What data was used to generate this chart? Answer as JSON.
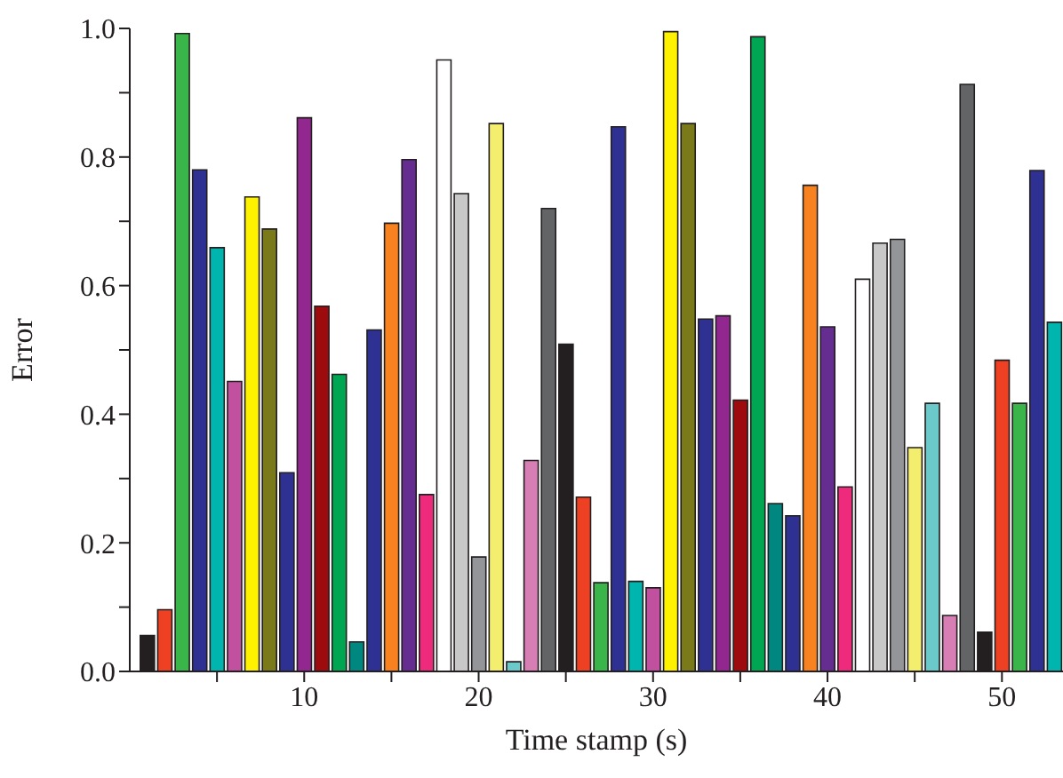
{
  "chart_data": {
    "type": "bar",
    "xlabel": "Time stamp (s)",
    "ylabel": "Error",
    "x": [
      1,
      2,
      3,
      4,
      5,
      6,
      7,
      8,
      9,
      10,
      11,
      12,
      13,
      14,
      15,
      16,
      17,
      18,
      19,
      20,
      21,
      22,
      23,
      24,
      25,
      26,
      27,
      28,
      29,
      30,
      31,
      32,
      33,
      34,
      35,
      36,
      37,
      38,
      39,
      40,
      41,
      42,
      43,
      44,
      45,
      46,
      47,
      48,
      49,
      50,
      51,
      52,
      53
    ],
    "values": [
      0.056,
      0.096,
      0.992,
      0.78,
      0.659,
      0.451,
      0.738,
      0.688,
      0.309,
      0.861,
      0.568,
      0.462,
      0.046,
      0.531,
      0.697,
      0.796,
      0.275,
      0.951,
      0.743,
      0.178,
      0.852,
      0.015,
      0.328,
      0.72,
      0.509,
      0.271,
      0.138,
      0.847,
      0.14,
      0.13,
      0.995,
      0.852,
      0.548,
      0.553,
      0.422,
      0.987,
      0.261,
      0.242,
      0.756,
      0.536,
      0.287,
      0.61,
      0.666,
      0.672,
      0.348,
      0.417,
      0.087,
      0.913,
      0.061,
      0.484,
      0.417,
      0.779,
      0.543
    ],
    "colors": [
      "#231f20",
      "#ee4023",
      "#3ab54a",
      "#2e3192",
      "#00b5ad",
      "#c1519f",
      "#fff200",
      "#7a7a1a",
      "#2e3192",
      "#92278f",
      "#9e0b0f",
      "#00a651",
      "#00877f",
      "#2e3192",
      "#f7821f",
      "#662d91",
      "#ed2a7b",
      "#ffffff",
      "#c8c8c8",
      "#939598",
      "#f4ee6f",
      "#6cc9c9",
      "#d77fb5",
      "#636466",
      "#231f20",
      "#ee4023",
      "#3ab54a",
      "#2e3192",
      "#00b5ad",
      "#c1519f",
      "#fff200",
      "#7a7a1a",
      "#2e3192",
      "#92278f",
      "#9e0b0f",
      "#00a651",
      "#00877f",
      "#2e3192",
      "#f7821f",
      "#662d91",
      "#ed2a7b",
      "#ffffff",
      "#c8c8c8",
      "#939598",
      "#f4ee6f",
      "#6cc9c9",
      "#d77fb5",
      "#636466",
      "#231f20",
      "#ee4023",
      "#3ab54a",
      "#2e3192",
      "#00b5ad"
    ],
    "xlim": [
      0,
      53.5
    ],
    "xticks": [
      {
        "value": 5,
        "label": null
      },
      10,
      {
        "value": 15,
        "label": null
      },
      20,
      {
        "value": 25,
        "label": null
      },
      30,
      {
        "value": 35,
        "label": null
      },
      40,
      {
        "value": 45,
        "label": null
      },
      50
    ],
    "ylim": [
      0,
      1
    ],
    "yticks": [
      {
        "value": 0,
        "label": "0.0"
      },
      {
        "value": 0.1,
        "label": null
      },
      {
        "value": 0.2,
        "label": "0.2"
      },
      {
        "value": 0.3,
        "label": null
      },
      {
        "value": 0.4,
        "label": "0.4"
      },
      {
        "value": 0.5,
        "label": null
      },
      {
        "value": 0.6,
        "label": "0.6"
      },
      {
        "value": 0.7,
        "label": null
      },
      {
        "value": 0.8,
        "label": "0.8"
      },
      {
        "value": 0.9,
        "label": null
      },
      {
        "value": 1,
        "label": "1.0"
      }
    ],
    "grid": false,
    "legend": false
  }
}
